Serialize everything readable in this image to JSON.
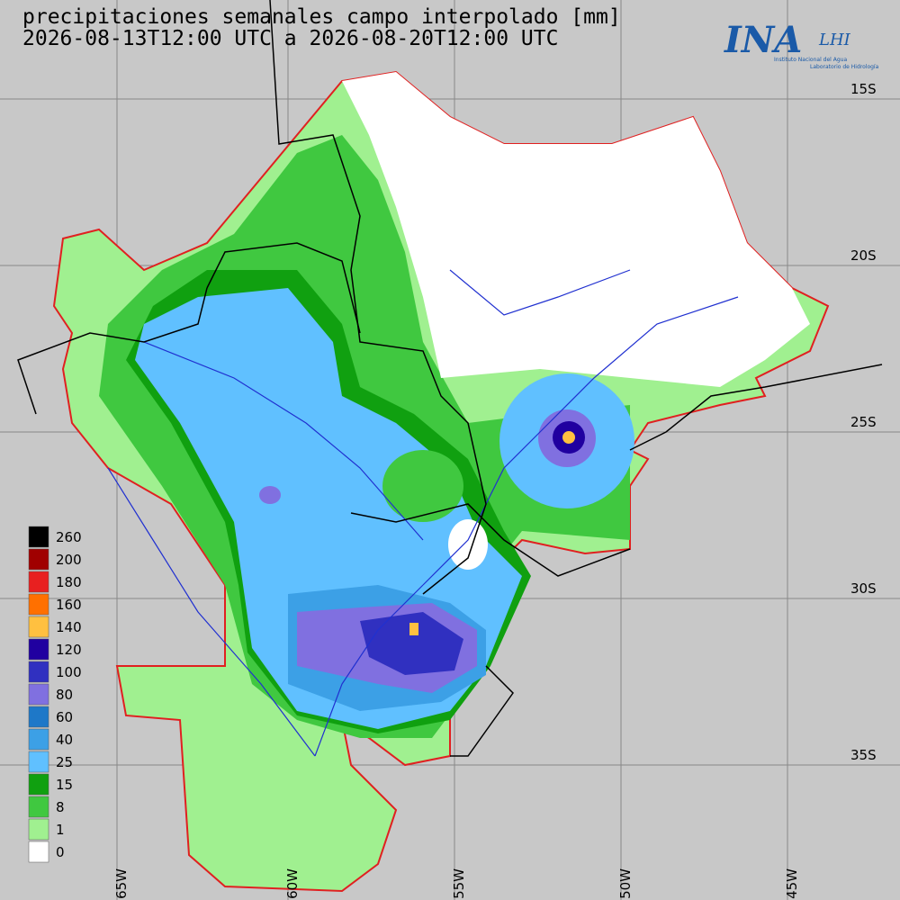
{
  "header": {
    "title": "precipitaciones semanales campo interpolado [mm]",
    "period": "2026-08-13T12:00 UTC a 2026-08-20T12:00 UTC"
  },
  "logo": {
    "name": "INA",
    "sub": "LHI",
    "line1": "Instituto Nacional del Agua",
    "line2": "Laboratorio de Hidrología"
  },
  "latitude_labels": [
    "15S",
    "20S",
    "25S",
    "30S",
    "35S"
  ],
  "longitude_labels": [
    "65W",
    "60W",
    "55W",
    "50W",
    "45W"
  ],
  "legend": [
    {
      "label": "260",
      "color": "#000000"
    },
    {
      "label": "200",
      "color": "#a00000"
    },
    {
      "label": "180",
      "color": "#e82020"
    },
    {
      "label": "160",
      "color": "#ff7000"
    },
    {
      "label": "140",
      "color": "#ffc040"
    },
    {
      "label": "120",
      "color": "#2000a0"
    },
    {
      "label": "100",
      "color": "#3030c0"
    },
    {
      "label": "80",
      "color": "#8070e0"
    },
    {
      "label": "60",
      "color": "#1e78c8"
    },
    {
      "label": "40",
      "color": "#3ca0e6"
    },
    {
      "label": "25",
      "color": "#60c0ff"
    },
    {
      "label": "15",
      "color": "#10a010"
    },
    {
      "label": "8",
      "color": "#40c840"
    },
    {
      "label": "1",
      "color": "#a0f090"
    },
    {
      "label": "0",
      "color": "#ffffff"
    }
  ]
}
